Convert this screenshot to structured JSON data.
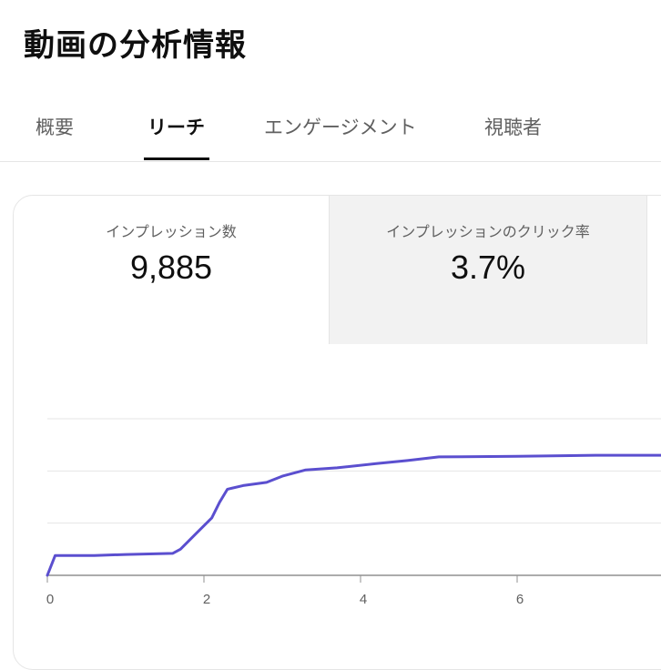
{
  "page": {
    "title": "動画の分析情報"
  },
  "tabs": [
    {
      "label": "概要",
      "active": false
    },
    {
      "label": "リーチ",
      "active": true
    },
    {
      "label": "エンゲージメント",
      "active": false
    },
    {
      "label": "視聴者",
      "active": false
    }
  ],
  "metrics": [
    {
      "label": "インプレッション数",
      "value": "9,885",
      "selected": false
    },
    {
      "label": "インプレッションのクリック率",
      "value": "3.7%",
      "selected": true
    }
  ],
  "colors": {
    "line": "#5b4fcf",
    "grid": "#e5e5e5",
    "axis": "#909090"
  },
  "chart_data": {
    "type": "line",
    "x_tick_labels": [
      "0",
      "2",
      "4",
      "6"
    ],
    "series": [
      {
        "values": [
          [
            0,
            0
          ],
          [
            0.1,
            0.38
          ],
          [
            0.6,
            0.38
          ],
          [
            1.0,
            0.4
          ],
          [
            1.6,
            0.42
          ],
          [
            1.7,
            0.5
          ],
          [
            1.9,
            0.8
          ],
          [
            2.1,
            1.1
          ],
          [
            2.2,
            1.4
          ],
          [
            2.3,
            1.65
          ],
          [
            2.5,
            1.72
          ],
          [
            2.8,
            1.78
          ],
          [
            3.0,
            1.9
          ],
          [
            3.3,
            2.02
          ],
          [
            3.7,
            2.06
          ],
          [
            4.2,
            2.14
          ],
          [
            4.6,
            2.2
          ],
          [
            5.0,
            2.27
          ],
          [
            6.0,
            2.28
          ],
          [
            7.0,
            2.3
          ],
          [
            8.0,
            2.3
          ]
        ]
      }
    ],
    "xlim": [
      0,
      8
    ],
    "ylim": [
      0,
      3
    ],
    "grid": true
  }
}
